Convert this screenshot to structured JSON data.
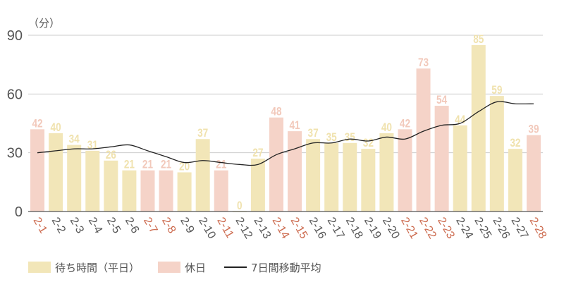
{
  "chart_data": {
    "type": "bar",
    "title": "",
    "unit_label": "（分）",
    "xlabel": "",
    "ylabel": "（分）",
    "ylim": [
      0,
      90
    ],
    "yticks": [
      0,
      30,
      60,
      90
    ],
    "grid": true,
    "legend_position": "bottom",
    "categories": [
      "2-1",
      "2-2",
      "2-3",
      "2-4",
      "2-5",
      "2-6",
      "2-7",
      "2-8",
      "2-9",
      "2-10",
      "2-11",
      "2-12",
      "2-13",
      "2-14",
      "2-15",
      "2-16",
      "2-17",
      "2-18",
      "2-19",
      "2-20",
      "2-21",
      "2-22",
      "2-23",
      "2-24",
      "2-25",
      "2-26",
      "2-27",
      "2-28"
    ],
    "values": [
      42,
      40,
      34,
      31,
      26,
      21,
      21,
      21,
      20,
      37,
      21,
      0,
      27,
      48,
      41,
      37,
      35,
      35,
      32,
      40,
      42,
      73,
      54,
      44,
      85,
      59,
      32,
      39
    ],
    "holiday": [
      true,
      false,
      false,
      false,
      false,
      false,
      true,
      true,
      false,
      false,
      true,
      false,
      false,
      true,
      true,
      false,
      false,
      false,
      false,
      false,
      true,
      true,
      true,
      false,
      false,
      false,
      false,
      true
    ],
    "series": [
      {
        "name": "待ち時間（平日）",
        "type": "bar",
        "color": "#f2e6b8"
      },
      {
        "name": "休日",
        "type": "bar",
        "color": "#f5d3c8"
      },
      {
        "name": "7日間移動平均",
        "type": "line",
        "color": "#222222",
        "values": [
          30,
          31,
          32,
          32,
          33,
          34,
          31,
          28,
          25,
          26,
          25,
          24,
          24,
          29,
          32,
          35,
          35,
          37,
          36,
          38,
          37,
          41,
          44,
          45,
          51,
          56,
          55,
          55
        ]
      }
    ],
    "colors": {
      "weekday_bar": "#f2e6b8",
      "holiday_bar": "#f5d3c8",
      "weekday_label": "#f0e2ae",
      "holiday_label": "#f2c9bb",
      "weekday_tick": "#555555",
      "holiday_tick": "#cc6a4e",
      "line": "#222222",
      "grid": "#cccccc",
      "axis": "#555555"
    }
  },
  "legend": {
    "weekday_label": "待ち時間（平日）",
    "holiday_label": "休日",
    "line_label": "7日間移動平均"
  }
}
